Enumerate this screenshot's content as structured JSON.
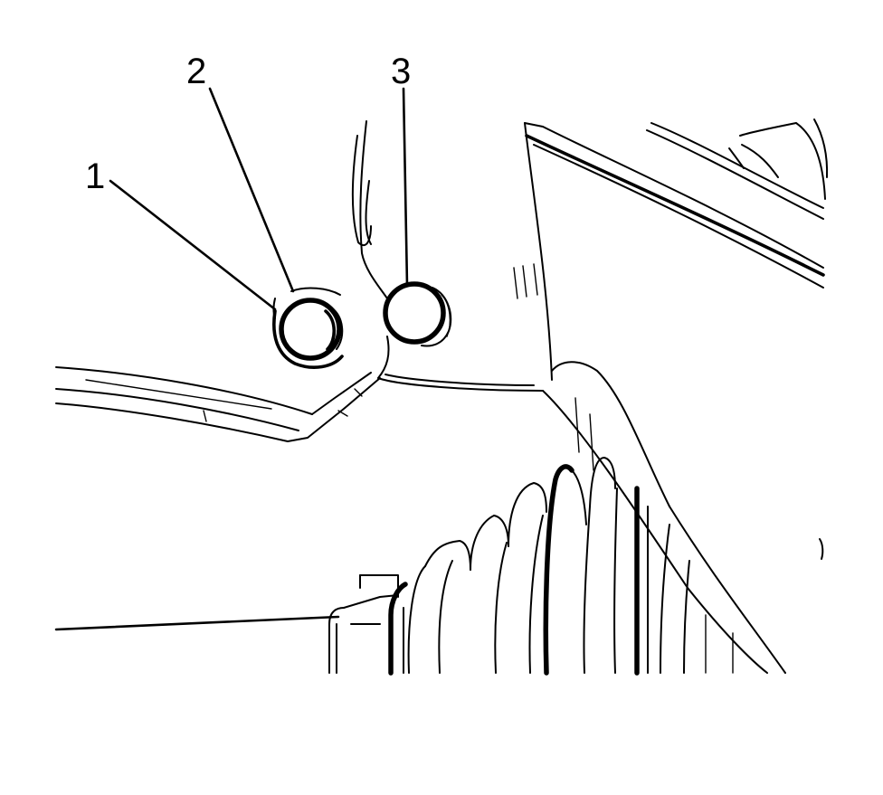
{
  "callouts": [
    {
      "id": "1",
      "label": "1"
    },
    {
      "id": "2",
      "label": "2"
    },
    {
      "id": "3",
      "label": "3"
    }
  ]
}
